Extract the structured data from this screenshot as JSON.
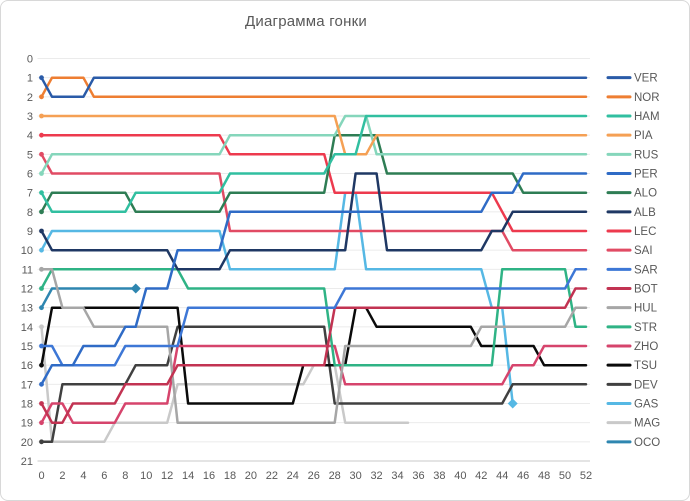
{
  "title": "Диаграмма гонки",
  "chart_data": {
    "type": "line",
    "title": "Диаграмма гонки",
    "xlabel": "",
    "ylabel": "",
    "x_axis": {
      "min": 0,
      "max": 52,
      "tick_step": 2,
      "ticks": [
        0,
        2,
        4,
        6,
        8,
        10,
        12,
        14,
        16,
        18,
        20,
        22,
        24,
        26,
        28,
        30,
        32,
        34,
        36,
        38,
        40,
        42,
        44,
        46,
        48,
        50,
        52
      ]
    },
    "y_axis": {
      "min": 0,
      "max": 21,
      "tick_step": 1,
      "ticks": [
        0,
        1,
        2,
        3,
        4,
        5,
        6,
        7,
        8,
        9,
        10,
        11,
        12,
        13,
        14,
        15,
        16,
        17,
        18,
        19,
        20,
        21
      ],
      "inverted": true
    },
    "grid": "horizontal",
    "legend_position": "right",
    "note_breakpoints": "each entry is [lap, position]; position holds until next breakpoint; transitions are drawn over one lap; end = last lap of that car",
    "series": [
      {
        "name": "VER",
        "color": "#2A5BA8",
        "end": 52,
        "breakpoints": [
          [
            0,
            1
          ],
          [
            1,
            2
          ],
          [
            5,
            1
          ]
        ]
      },
      {
        "name": "NOR",
        "color": "#EE7E32",
        "end": 52,
        "breakpoints": [
          [
            0,
            2
          ],
          [
            1,
            1
          ],
          [
            5,
            2
          ]
        ]
      },
      {
        "name": "HAM",
        "color": "#31BFA0",
        "end": 52,
        "breakpoints": [
          [
            0,
            7
          ],
          [
            1,
            8
          ],
          [
            9,
            7
          ],
          [
            18,
            6
          ],
          [
            28,
            5
          ],
          [
            31,
            3
          ]
        ]
      },
      {
        "name": "PIA",
        "color": "#F5A054",
        "end": 52,
        "breakpoints": [
          [
            0,
            3
          ],
          [
            29,
            5
          ],
          [
            32,
            4
          ]
        ]
      },
      {
        "name": "RUS",
        "color": "#85D6BB",
        "end": 52,
        "breakpoints": [
          [
            0,
            6
          ],
          [
            1,
            5
          ],
          [
            18,
            4
          ],
          [
            29,
            3
          ],
          [
            32,
            5
          ]
        ]
      },
      {
        "name": "PER",
        "color": "#2F6BC6",
        "end": 52,
        "breakpoints": [
          [
            0,
            17
          ],
          [
            1,
            16
          ],
          [
            4,
            15
          ],
          [
            8,
            14
          ],
          [
            10,
            12
          ],
          [
            13,
            10
          ],
          [
            18,
            8
          ],
          [
            43,
            7
          ],
          [
            46,
            6
          ]
        ]
      },
      {
        "name": "ALO",
        "color": "#2E7D54",
        "end": 52,
        "breakpoints": [
          [
            0,
            8
          ],
          [
            1,
            7
          ],
          [
            9,
            8
          ],
          [
            18,
            7
          ],
          [
            28,
            4
          ],
          [
            33,
            6
          ],
          [
            46,
            7
          ]
        ]
      },
      {
        "name": "ALB",
        "color": "#1F3864",
        "end": 52,
        "breakpoints": [
          [
            0,
            9
          ],
          [
            1,
            10
          ],
          [
            13,
            11
          ],
          [
            18,
            10
          ],
          [
            30,
            6
          ],
          [
            33,
            10
          ],
          [
            43,
            9
          ],
          [
            45,
            8
          ]
        ]
      },
      {
        "name": "LEC",
        "color": "#ED3A4E",
        "end": 52,
        "breakpoints": [
          [
            0,
            4
          ],
          [
            18,
            5
          ],
          [
            28,
            7
          ],
          [
            44,
            8
          ],
          [
            45,
            9
          ]
        ]
      },
      {
        "name": "SAI",
        "color": "#E14B64",
        "end": 52,
        "breakpoints": [
          [
            0,
            5
          ],
          [
            1,
            6
          ],
          [
            18,
            9
          ],
          [
            45,
            10
          ]
        ]
      },
      {
        "name": "SAR",
        "color": "#3D77D6",
        "end": 52,
        "breakpoints": [
          [
            0,
            15
          ],
          [
            2,
            16
          ],
          [
            8,
            15
          ],
          [
            14,
            13
          ],
          [
            29,
            12
          ],
          [
            51,
            11
          ]
        ]
      },
      {
        "name": "BOT",
        "color": "#C23352",
        "end": 52,
        "breakpoints": [
          [
            0,
            18
          ],
          [
            1,
            19
          ],
          [
            3,
            18
          ],
          [
            8,
            17
          ],
          [
            13,
            16
          ],
          [
            28,
            13
          ],
          [
            51,
            12
          ]
        ]
      },
      {
        "name": "HUL",
        "color": "#A6A6A6",
        "end": 52,
        "breakpoints": [
          [
            0,
            11
          ],
          [
            2,
            13
          ],
          [
            5,
            14
          ],
          [
            13,
            19
          ],
          [
            29,
            15
          ],
          [
            42,
            14
          ],
          [
            51,
            13
          ]
        ]
      },
      {
        "name": "STR",
        "color": "#2FB385",
        "end": 52,
        "breakpoints": [
          [
            0,
            12
          ],
          [
            1,
            11
          ],
          [
            14,
            12
          ],
          [
            28,
            16
          ],
          [
            44,
            11
          ],
          [
            51,
            14
          ]
        ]
      },
      {
        "name": "ZHO",
        "color": "#D6446C",
        "end": 52,
        "breakpoints": [
          [
            0,
            19
          ],
          [
            1,
            18
          ],
          [
            3,
            19
          ],
          [
            8,
            18
          ],
          [
            13,
            15
          ],
          [
            29,
            17
          ],
          [
            45,
            16
          ],
          [
            48,
            15
          ]
        ]
      },
      {
        "name": "TSU",
        "color": "#0A0A0A",
        "end": 52,
        "breakpoints": [
          [
            0,
            16
          ],
          [
            1,
            13
          ],
          [
            14,
            18
          ],
          [
            25,
            16
          ],
          [
            30,
            13
          ],
          [
            32,
            14
          ],
          [
            42,
            15
          ],
          [
            48,
            16
          ]
        ]
      },
      {
        "name": "DEV",
        "color": "#404040",
        "end": 52,
        "breakpoints": [
          [
            0,
            20
          ],
          [
            2,
            17
          ],
          [
            9,
            16
          ],
          [
            13,
            14
          ],
          [
            28,
            18
          ],
          [
            45,
            17
          ]
        ]
      },
      {
        "name": "GAS",
        "color": "#56B8E4",
        "end": 45,
        "dnf": true,
        "breakpoints": [
          [
            0,
            10
          ],
          [
            1,
            9
          ],
          [
            18,
            11
          ],
          [
            29,
            7
          ],
          [
            31,
            11
          ],
          [
            43,
            13
          ],
          [
            45,
            18
          ]
        ]
      },
      {
        "name": "MAG",
        "color": "#C9C9C9",
        "end": 35,
        "breakpoints": [
          [
            0,
            14
          ],
          [
            1,
            20
          ],
          [
            7,
            19
          ],
          [
            13,
            17
          ],
          [
            26,
            16
          ],
          [
            29,
            19
          ]
        ]
      },
      {
        "name": "OCO",
        "color": "#2E86B0",
        "end": 9,
        "dnf": true,
        "breakpoints": [
          [
            0,
            13
          ],
          [
            1,
            12
          ]
        ]
      }
    ]
  }
}
